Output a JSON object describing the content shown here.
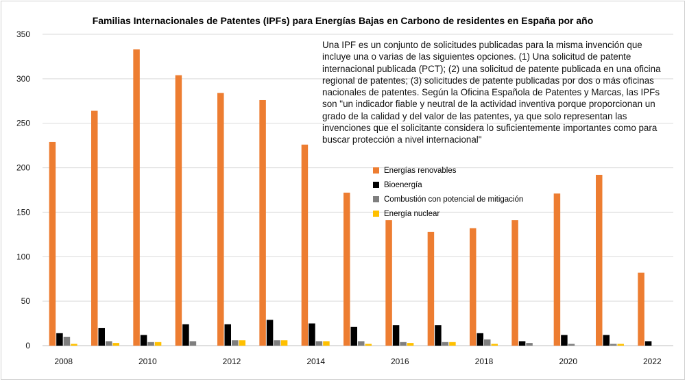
{
  "chart_data": {
    "type": "bar",
    "title": "Familias Internacionales de Patentes (IPFs) para Energías Bajas en Carbono de residentes en España por año",
    "xlabel": "",
    "ylabel": "",
    "ylim": [
      0,
      350
    ],
    "yticks": [
      "0",
      "50",
      "100",
      "150",
      "200",
      "250",
      "300",
      "350"
    ],
    "grid": true,
    "legend_position": "right",
    "categories": [
      "2008",
      "2009",
      "2010",
      "2011",
      "2012",
      "2013",
      "2014",
      "2015",
      "2016",
      "2017",
      "2018",
      "2019",
      "2020",
      "2021",
      "2022"
    ],
    "xtick_labels": [
      "2008",
      "",
      "2010",
      "",
      "2012",
      "",
      "2014",
      "",
      "2016",
      "",
      "2018",
      "",
      "2020",
      "",
      "2022"
    ],
    "series": [
      {
        "name": "Energías renovables",
        "color": "#ED7D31",
        "values": [
          229,
          264,
          333,
          304,
          284,
          276,
          226,
          172,
          141,
          128,
          132,
          141,
          171,
          192,
          82
        ]
      },
      {
        "name": "Bioenergía",
        "color": "#000000",
        "values": [
          14,
          20,
          12,
          24,
          24,
          29,
          25,
          21,
          23,
          23,
          14,
          5,
          12,
          12,
          5
        ]
      },
      {
        "name": "Combustión con potencial de mitigación",
        "color": "#7F7F7F",
        "values": [
          10,
          5,
          4,
          5,
          6,
          6,
          5,
          5,
          4,
          4,
          7,
          3,
          2,
          2,
          0
        ]
      },
      {
        "name": "Energía nuclear",
        "color": "#FFC000",
        "values": [
          2,
          3,
          4,
          0,
          6,
          6,
          5,
          2,
          3,
          4,
          2,
          0,
          0,
          2,
          0
        ]
      }
    ],
    "annotation": "Una IPF es un conjunto de solicitudes publicadas para la misma invención que incluye una o varias de las siguientes opciones. (1) Una solicitud de patente internacional publicada (PCT); (2) una solicitud de patente publicada en una oficina regional de patentes; (3) solicitudes de patente publicadas por dos o más oficinas nacionales de patentes. Según la Oficina Española de Patentes y Marcas, las IPFs son \"un indicador fiable y neutral de la actividad inventiva porque proporcionan un grado de la calidad y del valor de las patentes, ya que solo representan las invenciones que el solicitante considera lo suficientemente importantes como para buscar protección a nivel internacional\""
  },
  "colors": {
    "grid": "#D9D9D9",
    "axis": "#BFBFBF"
  }
}
